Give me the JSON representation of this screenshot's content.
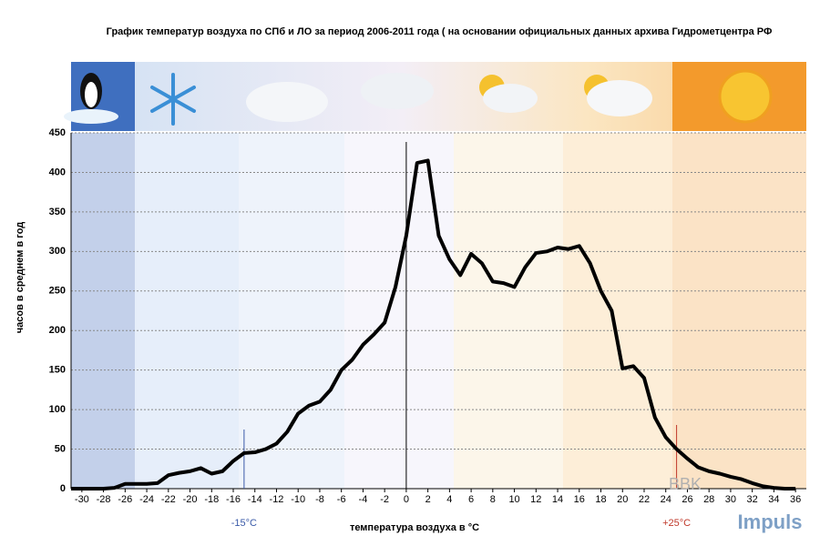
{
  "chart_data": {
    "type": "line",
    "title": "График температур воздуха по СПб и ЛО за период 2006-2011 года ( на основании официальных данных архива Гидрометцентра РФ",
    "x_label": "температура воздуха в °С",
    "y_label": "часов в среднем в год",
    "x": [
      -31,
      -30,
      -29,
      -28,
      -27,
      -26,
      -25,
      -24,
      -23,
      -22,
      -21,
      -20,
      -19,
      -18,
      -17,
      -16,
      -15,
      -14,
      -13,
      -12,
      -11,
      -10,
      -9,
      -8,
      -7,
      -6,
      -5,
      -4,
      -3,
      -2,
      -1,
      0,
      1,
      2,
      3,
      4,
      5,
      6,
      7,
      8,
      9,
      10,
      11,
      12,
      13,
      14,
      15,
      16,
      17,
      18,
      19,
      20,
      21,
      22,
      23,
      24,
      25,
      26,
      27,
      28,
      29,
      30,
      31,
      32,
      33,
      34,
      35,
      36
    ],
    "series": [
      {
        "name": "часов в среднем в год",
        "color": "#000000",
        "values": [
          0,
          0,
          0,
          0,
          1,
          6,
          6,
          6,
          7,
          17,
          20,
          22,
          26,
          19,
          22,
          35,
          45,
          46,
          50,
          57,
          72,
          95,
          105,
          110,
          125,
          150,
          163,
          182,
          195,
          210,
          255,
          320,
          412,
          415,
          320,
          290,
          270,
          297,
          285,
          262,
          260,
          255,
          280,
          298,
          300,
          305,
          303,
          307,
          285,
          250,
          225,
          152,
          155,
          140,
          90,
          65,
          50,
          38,
          27,
          22,
          19,
          15,
          12,
          7,
          3,
          1,
          0,
          0
        ]
      }
    ],
    "xlim": [
      -31,
      37
    ],
    "ylim": [
      0,
      450
    ],
    "xticks": [
      -30,
      -28,
      -26,
      -24,
      -22,
      -20,
      -18,
      -16,
      -14,
      -12,
      -10,
      -8,
      -6,
      -4,
      -2,
      0,
      2,
      4,
      6,
      8,
      10,
      12,
      14,
      16,
      18,
      20,
      22,
      24,
      26,
      28,
      30,
      32,
      34,
      36
    ],
    "yticks": [
      0,
      50,
      100,
      150,
      200,
      250,
      300,
      350,
      400,
      450
    ],
    "grid": true,
    "reference_lines": [
      {
        "value": -15,
        "label": "-15°С",
        "color": "#3a5aa8"
      },
      {
        "value": 0,
        "color": "#000000"
      },
      {
        "value": 25,
        "label": "+25°С",
        "color": "#c0392b"
      }
    ],
    "watermark": [
      "BBK",
      "Impuls"
    ]
  }
}
